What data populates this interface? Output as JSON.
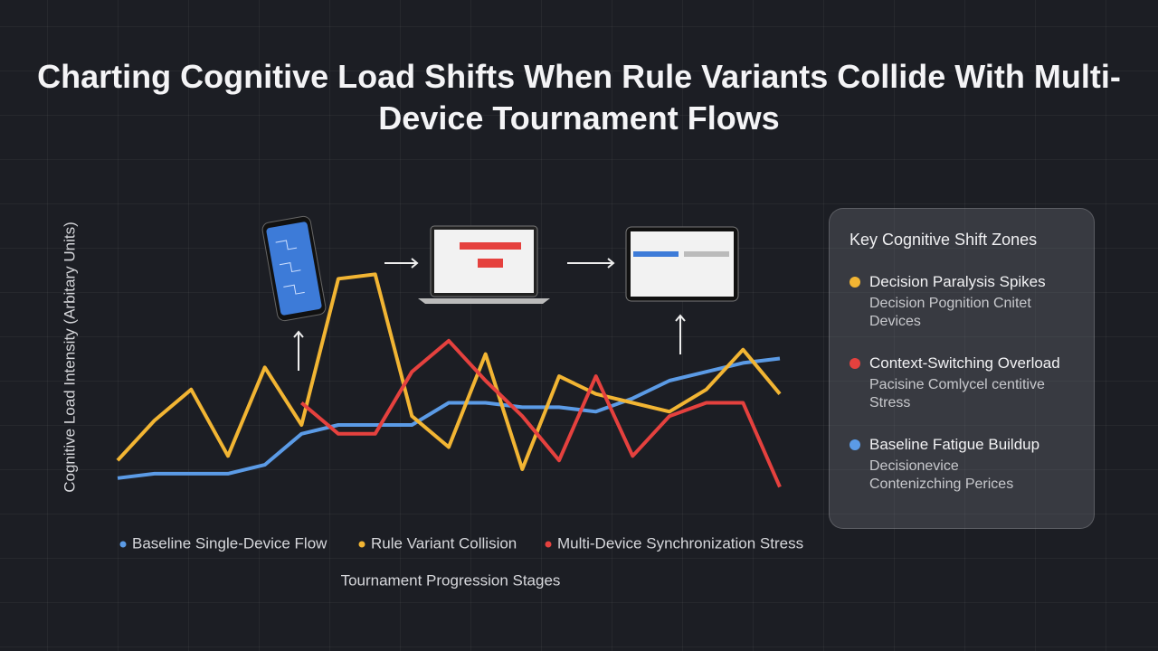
{
  "chart_data": {
    "type": "line",
    "title": "Charting Cognitive Load Shifts When Rule Variants Collide With Multi-Device Tournament Flows",
    "x_label": "Tournament Progression Stages",
    "y_label": "Cognitive Load Intensity (Arbitary Units)",
    "categories": [
      null,
      null,
      null,
      null,
      null,
      null,
      null,
      null,
      null,
      null,
      null,
      null,
      null,
      null,
      null,
      null,
      null,
      null,
      null
    ],
    "ylim": [
      0,
      7
    ],
    "series": [
      {
        "name": "Baseline Single-Device Flow",
        "color": "#5b9be6",
        "values": [
          0.8,
          0.9,
          0.9,
          0.9,
          1.1,
          1.8,
          2.0,
          2.0,
          2.0,
          2.5,
          2.5,
          2.4,
          2.4,
          2.3,
          2.6,
          3.0,
          3.2,
          3.4,
          3.5
        ]
      },
      {
        "name": "Rule Variant Collision",
        "color": "#f2b533",
        "values": [
          1.2,
          2.1,
          2.8,
          1.3,
          3.3,
          2.0,
          5.3,
          5.4,
          2.2,
          1.5,
          3.6,
          1.0,
          3.1,
          2.7,
          2.5,
          2.3,
          2.8,
          3.7,
          2.7
        ]
      },
      {
        "name": "Multi-Device Synchronization Stress",
        "color": "#e5413e",
        "values": [
          null,
          null,
          null,
          null,
          null,
          2.5,
          1.8,
          1.8,
          3.2,
          3.9,
          3.0,
          2.2,
          1.2,
          3.1,
          1.3,
          2.2,
          2.5,
          2.5,
          0.6
        ]
      }
    ]
  },
  "key_panel": {
    "title": "Key Cognitive Shift Zones",
    "items": [
      {
        "label": "Decision Paralysis Spikes",
        "description": "Decision Pognition Cnitet Devices",
        "color": "#f2b533"
      },
      {
        "label": "Context-Switching Overload",
        "description": "Pacisine Comlycel centitive Stress",
        "color": "#e5413e"
      },
      {
        "label": "Baseline Fatigue Buildup",
        "description": "Decisionevice Contenizching Perices",
        "color": "#5b9be6"
      }
    ]
  }
}
